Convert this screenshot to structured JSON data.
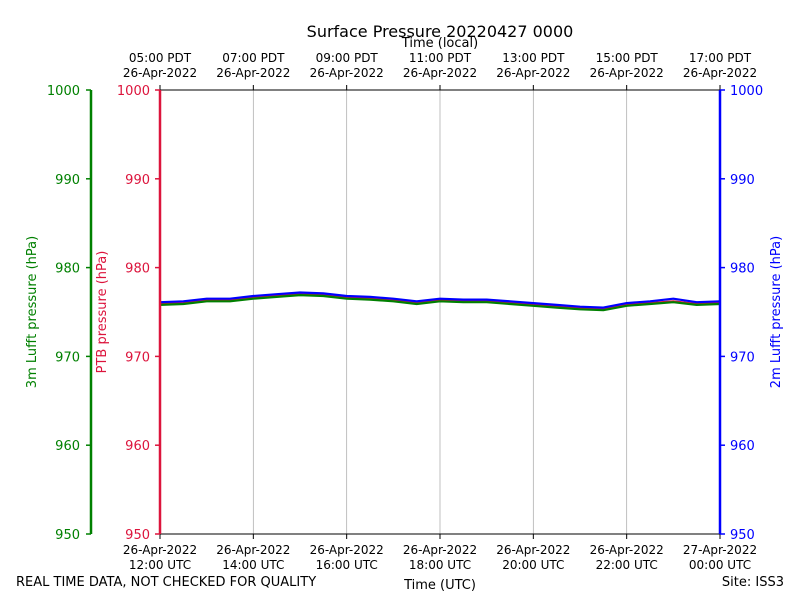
{
  "footer": {
    "quality_note": "REAL TIME DATA, NOT CHECKED FOR QUALITY",
    "site": "Site: ISS3"
  },
  "chart_data": {
    "type": "line",
    "title": "Surface Pressure 20220427 0000",
    "xlabel": "Time (UTC)",
    "x2label": "Time (local)",
    "x_range": [
      "26-Apr-2022 12:00 UTC",
      "27-Apr-2022 00:00 UTC"
    ],
    "x_ticks_bottom": [
      {
        "hour": 0,
        "line1": "26-Apr-2022",
        "line2": "12:00 UTC"
      },
      {
        "hour": 2,
        "line1": "26-Apr-2022",
        "line2": "14:00 UTC"
      },
      {
        "hour": 4,
        "line1": "26-Apr-2022",
        "line2": "16:00 UTC"
      },
      {
        "hour": 6,
        "line1": "26-Apr-2022",
        "line2": "18:00 UTC"
      },
      {
        "hour": 8,
        "line1": "26-Apr-2022",
        "line2": "20:00 UTC"
      },
      {
        "hour": 10,
        "line1": "26-Apr-2022",
        "line2": "22:00 UTC"
      },
      {
        "hour": 12,
        "line1": "27-Apr-2022",
        "line2": "00:00 UTC"
      }
    ],
    "x_ticks_top": [
      {
        "hour": 0,
        "line1": "05:00 PDT",
        "line2": "26-Apr-2022"
      },
      {
        "hour": 2,
        "line1": "07:00 PDT",
        "line2": "26-Apr-2022"
      },
      {
        "hour": 4,
        "line1": "09:00 PDT",
        "line2": "26-Apr-2022"
      },
      {
        "hour": 6,
        "line1": "11:00 PDT",
        "line2": "26-Apr-2022"
      },
      {
        "hour": 8,
        "line1": "13:00 PDT",
        "line2": "26-Apr-2022"
      },
      {
        "hour": 10,
        "line1": "15:00 PDT",
        "line2": "26-Apr-2022"
      },
      {
        "hour": 12,
        "line1": "17:00 PDT",
        "line2": "26-Apr-2022"
      }
    ],
    "grid": "vertical",
    "y_axes": [
      {
        "id": "ptb",
        "label": "PTB pressure (hPa)",
        "color": "#dc143c",
        "ylim": [
          950,
          1000
        ],
        "ticks": [
          950,
          960,
          970,
          980,
          990,
          1000
        ],
        "side": "left"
      },
      {
        "id": "lufft3m",
        "label": "3m Lufft pressure (hPa)",
        "color": "#008000",
        "ylim": [
          950,
          1000
        ],
        "ticks": [
          950,
          960,
          970,
          980,
          990,
          1000
        ],
        "side": "left-outer"
      },
      {
        "id": "lufft2m",
        "label": "2m Lufft pressure (hPa)",
        "color": "#0000ff",
        "ylim": [
          950,
          1000
        ],
        "ticks": [
          950,
          960,
          970,
          980,
          990,
          1000
        ],
        "side": "right"
      }
    ],
    "x": [
      "12:00",
      "12:30",
      "13:00",
      "13:30",
      "14:00",
      "14:30",
      "15:00",
      "15:30",
      "16:00",
      "16:30",
      "17:00",
      "17:30",
      "18:00",
      "18:30",
      "19:00",
      "19:30",
      "20:00",
      "20:30",
      "21:00",
      "21:30",
      "22:00",
      "22:30",
      "23:00",
      "23:30",
      "00:00"
    ],
    "series": [
      {
        "axis": "ptb",
        "color": "#dc143c",
        "values": [
          975.9,
          976.0,
          976.3,
          976.3,
          976.6,
          976.8,
          977.0,
          976.9,
          976.6,
          976.5,
          976.3,
          976.0,
          976.3,
          976.2,
          976.2,
          976.0,
          975.8,
          975.6,
          975.4,
          975.3,
          975.8,
          976.0,
          976.2,
          975.9,
          976.0
        ]
      },
      {
        "axis": "lufft3m",
        "color": "#008000",
        "values": [
          975.8,
          975.9,
          976.2,
          976.2,
          976.5,
          976.7,
          976.9,
          976.8,
          976.5,
          976.4,
          976.2,
          975.9,
          976.2,
          976.1,
          976.1,
          975.9,
          975.7,
          975.5,
          975.3,
          975.2,
          975.7,
          975.9,
          976.1,
          975.8,
          975.9
        ]
      },
      {
        "axis": "lufft2m",
        "color": "#0000ff",
        "values": [
          976.1,
          976.2,
          976.5,
          976.5,
          976.8,
          977.0,
          977.2,
          977.1,
          976.8,
          976.7,
          976.5,
          976.2,
          976.5,
          976.4,
          976.4,
          976.2,
          976.0,
          975.8,
          975.6,
          975.5,
          976.0,
          976.2,
          976.5,
          976.1,
          976.2
        ]
      }
    ]
  }
}
